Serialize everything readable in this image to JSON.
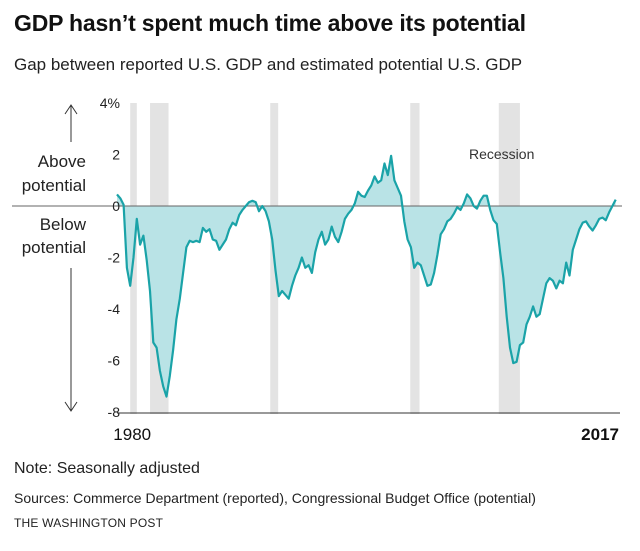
{
  "header": {
    "title": "GDP hasn’t spent much time above its potential",
    "subtitle": "Gap between reported U.S. GDP and estimated potential U.S. GDP"
  },
  "footer": {
    "note": "Note: Seasonally adjusted",
    "sources": "Sources: Commerce Department (reported), Congressional Budget Office (potential)",
    "credit": "THE WASHINGTON POST"
  },
  "annotations": {
    "above": [
      "Above",
      "potential"
    ],
    "below": [
      "Below",
      "potential"
    ],
    "recession": "Recession"
  },
  "colors": {
    "line": "#1aa3a8",
    "fill": "#b9e3e6",
    "recession": "#e3e3e3",
    "axis": "#333333"
  },
  "chart_data": {
    "type": "area",
    "title": "GDP hasn’t spent much time above its potential",
    "subtitle": "Gap between reported U.S. GDP and estimated potential U.S. GDP",
    "xlabel": "",
    "ylabel": "",
    "xlim": [
      1979.0,
      2017.0
    ],
    "ylim": [
      -8,
      4
    ],
    "y_ticks": [
      4,
      2,
      0,
      -2,
      -4,
      -6,
      -8
    ],
    "y_tick_labels": [
      "4%",
      "2",
      "0",
      "-2",
      "-4",
      "-6",
      "-8"
    ],
    "x_tick_labels": [
      {
        "x": 1980,
        "label": "1980",
        "bold": false
      },
      {
        "x": 2017,
        "label": "2017",
        "bold": true
      }
    ],
    "grid": false,
    "recessions": [
      [
        1980.0,
        1980.5
      ],
      [
        1981.5,
        1982.9
      ],
      [
        1990.6,
        1991.2
      ],
      [
        2001.2,
        2001.9
      ],
      [
        2007.9,
        2009.5
      ]
    ],
    "series": [
      {
        "values": [
          [
            1979.0,
            0.45
          ],
          [
            1979.25,
            0.3
          ],
          [
            1979.5,
            0.05
          ],
          [
            1979.75,
            -2.4
          ],
          [
            1980.0,
            -3.1
          ],
          [
            1980.25,
            -2.0
          ],
          [
            1980.5,
            -0.5
          ],
          [
            1980.75,
            -1.5
          ],
          [
            1981.0,
            -1.15
          ],
          [
            1981.25,
            -2.1
          ],
          [
            1981.5,
            -3.3
          ],
          [
            1981.75,
            -5.3
          ],
          [
            1982.0,
            -5.5
          ],
          [
            1982.25,
            -6.4
          ],
          [
            1982.5,
            -7.0
          ],
          [
            1982.75,
            -7.4
          ],
          [
            1983.0,
            -6.6
          ],
          [
            1983.25,
            -5.6
          ],
          [
            1983.5,
            -4.4
          ],
          [
            1983.75,
            -3.6
          ],
          [
            1984.0,
            -2.6
          ],
          [
            1984.25,
            -1.6
          ],
          [
            1984.5,
            -1.35
          ],
          [
            1984.75,
            -1.4
          ],
          [
            1985.0,
            -1.35
          ],
          [
            1985.25,
            -1.4
          ],
          [
            1985.5,
            -0.85
          ],
          [
            1985.75,
            -1.0
          ],
          [
            1986.0,
            -0.9
          ],
          [
            1986.25,
            -1.3
          ],
          [
            1986.5,
            -1.35
          ],
          [
            1986.75,
            -1.7
          ],
          [
            1987.0,
            -1.5
          ],
          [
            1987.25,
            -1.3
          ],
          [
            1987.5,
            -0.9
          ],
          [
            1987.75,
            -0.65
          ],
          [
            1988.0,
            -0.75
          ],
          [
            1988.25,
            -0.35
          ],
          [
            1988.5,
            -0.15
          ],
          [
            1988.75,
            0.0
          ],
          [
            1989.0,
            0.15
          ],
          [
            1989.25,
            0.2
          ],
          [
            1989.5,
            0.15
          ],
          [
            1989.75,
            -0.2
          ],
          [
            1990.0,
            0.0
          ],
          [
            1990.25,
            -0.2
          ],
          [
            1990.5,
            -0.6
          ],
          [
            1990.75,
            -1.3
          ],
          [
            1991.0,
            -2.5
          ],
          [
            1991.25,
            -3.5
          ],
          [
            1991.5,
            -3.3
          ],
          [
            1991.75,
            -3.45
          ],
          [
            1992.0,
            -3.6
          ],
          [
            1992.25,
            -3.1
          ],
          [
            1992.5,
            -2.7
          ],
          [
            1992.75,
            -2.4
          ],
          [
            1993.0,
            -2.0
          ],
          [
            1993.25,
            -2.4
          ],
          [
            1993.5,
            -2.3
          ],
          [
            1993.75,
            -2.6
          ],
          [
            1994.0,
            -1.8
          ],
          [
            1994.25,
            -1.3
          ],
          [
            1994.5,
            -1.0
          ],
          [
            1994.75,
            -1.5
          ],
          [
            1995.0,
            -1.3
          ],
          [
            1995.25,
            -0.8
          ],
          [
            1995.5,
            -1.2
          ],
          [
            1995.75,
            -1.4
          ],
          [
            1996.0,
            -1.0
          ],
          [
            1996.25,
            -0.5
          ],
          [
            1996.5,
            -0.3
          ],
          [
            1996.75,
            -0.15
          ],
          [
            1997.0,
            0.1
          ],
          [
            1997.25,
            0.55
          ],
          [
            1997.5,
            0.4
          ],
          [
            1997.75,
            0.35
          ],
          [
            1998.0,
            0.6
          ],
          [
            1998.25,
            0.8
          ],
          [
            1998.5,
            1.15
          ],
          [
            1998.75,
            0.9
          ],
          [
            1999.0,
            1.0
          ],
          [
            1999.25,
            1.65
          ],
          [
            1999.5,
            1.2
          ],
          [
            1999.75,
            1.95
          ],
          [
            2000.0,
            1.0
          ],
          [
            2000.25,
            0.7
          ],
          [
            2000.5,
            0.4
          ],
          [
            2000.75,
            -0.6
          ],
          [
            2001.0,
            -1.3
          ],
          [
            2001.25,
            -1.6
          ],
          [
            2001.5,
            -2.4
          ],
          [
            2001.75,
            -2.2
          ],
          [
            2002.0,
            -2.3
          ],
          [
            2002.25,
            -2.7
          ],
          [
            2002.5,
            -3.1
          ],
          [
            2002.75,
            -3.05
          ],
          [
            2003.0,
            -2.6
          ],
          [
            2003.25,
            -1.9
          ],
          [
            2003.5,
            -1.1
          ],
          [
            2003.75,
            -0.9
          ],
          [
            2004.0,
            -0.6
          ],
          [
            2004.25,
            -0.5
          ],
          [
            2004.5,
            -0.3
          ],
          [
            2004.75,
            -0.05
          ],
          [
            2005.0,
            -0.15
          ],
          [
            2005.25,
            0.1
          ],
          [
            2005.5,
            0.45
          ],
          [
            2005.75,
            0.3
          ],
          [
            2006.0,
            0.0
          ],
          [
            2006.25,
            -0.1
          ],
          [
            2006.5,
            0.2
          ],
          [
            2006.75,
            0.4
          ],
          [
            2007.0,
            0.4
          ],
          [
            2007.25,
            -0.15
          ],
          [
            2007.5,
            -0.55
          ],
          [
            2007.75,
            -0.7
          ],
          [
            2008.0,
            -1.8
          ],
          [
            2008.25,
            -2.8
          ],
          [
            2008.5,
            -4.3
          ],
          [
            2008.75,
            -5.5
          ],
          [
            2009.0,
            -6.1
          ],
          [
            2009.25,
            -6.05
          ],
          [
            2009.5,
            -5.4
          ],
          [
            2009.75,
            -5.3
          ],
          [
            2010.0,
            -4.6
          ],
          [
            2010.25,
            -4.3
          ],
          [
            2010.5,
            -3.9
          ],
          [
            2010.75,
            -4.3
          ],
          [
            2011.0,
            -4.2
          ],
          [
            2011.25,
            -3.6
          ],
          [
            2011.5,
            -3.0
          ],
          [
            2011.75,
            -2.8
          ],
          [
            2012.0,
            -2.9
          ],
          [
            2012.25,
            -3.2
          ],
          [
            2012.5,
            -2.9
          ],
          [
            2012.75,
            -3.0
          ],
          [
            2013.0,
            -2.2
          ],
          [
            2013.25,
            -2.7
          ],
          [
            2013.5,
            -1.7
          ],
          [
            2013.75,
            -1.3
          ],
          [
            2014.0,
            -0.9
          ],
          [
            2014.25,
            -0.65
          ],
          [
            2014.5,
            -0.6
          ],
          [
            2014.75,
            -0.8
          ],
          [
            2015.0,
            -0.95
          ],
          [
            2015.25,
            -0.75
          ],
          [
            2015.5,
            -0.5
          ],
          [
            2015.75,
            -0.45
          ],
          [
            2016.0,
            -0.55
          ],
          [
            2016.25,
            -0.25
          ],
          [
            2016.5,
            0.0
          ],
          [
            2016.75,
            0.25
          ]
        ]
      }
    ]
  }
}
